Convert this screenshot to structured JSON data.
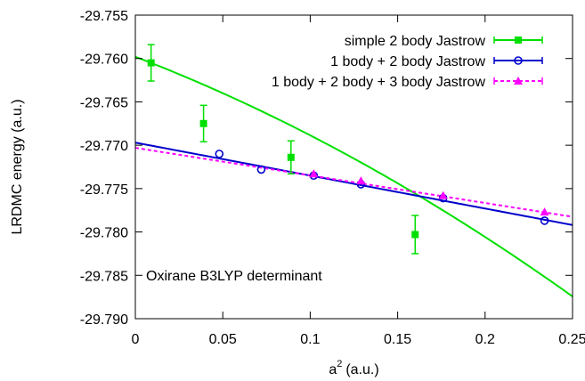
{
  "chart_data": {
    "type": "scatter",
    "xlabel": "a",
    "xlabel_superscript": "2",
    "xlabel_unit": "(a.u.)",
    "ylabel": "LRDMC energy (a.u.)",
    "xlim": [
      0,
      0.25
    ],
    "ylim": [
      -29.79,
      -29.755
    ],
    "x_ticks": [
      "0",
      "0.05",
      "0.1",
      "0.15",
      "0.2",
      "0.25"
    ],
    "y_ticks": [
      "-29.755",
      "-29.760",
      "-29.765",
      "-29.770",
      "-29.775",
      "-29.780",
      "-29.785",
      "-29.790"
    ],
    "x_tick_values": [
      0,
      0.05,
      0.1,
      0.15,
      0.2,
      0.25
    ],
    "y_tick_values": [
      -29.755,
      -29.76,
      -29.765,
      -29.77,
      -29.775,
      -29.78,
      -29.785,
      -29.79
    ],
    "annotation": "Oxirane B3LYP determinant",
    "legend_position": "top-right",
    "grid": false,
    "series": [
      {
        "name": "simple 2 body Jastrow",
        "color": "#00e000",
        "marker": "filled-square",
        "line_style": "solid",
        "x": [
          0.009,
          0.039,
          0.089,
          0.16
        ],
        "y": [
          -29.7605,
          -29.7675,
          -29.7714,
          -29.7803
        ],
        "yerr": [
          0.0021,
          0.0021,
          0.0019,
          0.0022
        ],
        "fit": [
          -29.7598,
          -0.0773,
          -0.133
        ]
      },
      {
        "name": "1 body + 2 body Jastrow",
        "color": "#0000cc",
        "marker": "open-circle",
        "line_style": "solid",
        "x": [
          0.048,
          0.072,
          0.102,
          0.129,
          0.176,
          0.234
        ],
        "y": [
          -29.771,
          -29.7728,
          -29.7735,
          -29.7745,
          -29.7761,
          -29.7787
        ],
        "yerr": [
          0.0002,
          0.0002,
          0.0002,
          0.0002,
          0.0002,
          0.0002
        ],
        "fit": [
          -29.7697,
          -0.038,
          0
        ]
      },
      {
        "name": "1 body + 2 body + 3 body Jastrow",
        "color": "#ff00ff",
        "marker": "filled-triangle",
        "line_style": "dashed",
        "x": [
          0.102,
          0.129,
          0.176,
          0.234
        ],
        "y": [
          -29.7733,
          -29.7741,
          -29.7758,
          -29.7777
        ],
        "yerr": [
          0.0002,
          0.0002,
          0.0002,
          0.0002
        ],
        "fit": [
          -29.7703,
          -0.0318,
          0
        ]
      }
    ]
  }
}
